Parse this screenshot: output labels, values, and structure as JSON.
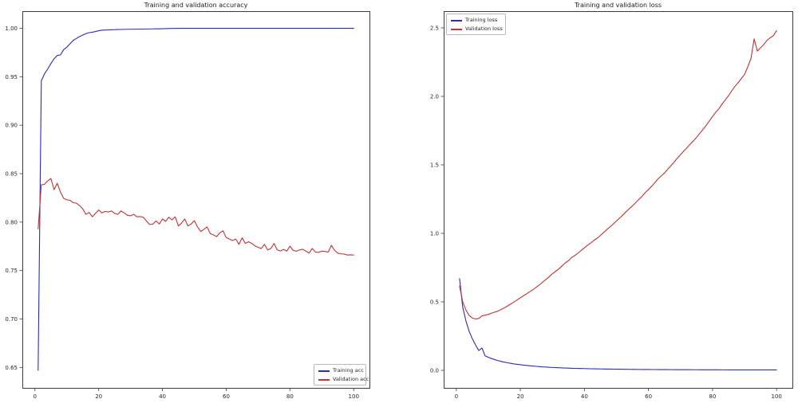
{
  "figure": {
    "background": "#ffffff",
    "axis_color": "#3c3c3c",
    "tick_text_color": "#262626"
  },
  "chart_data": [
    {
      "type": "line",
      "title": "Training and validation accuracy",
      "xlabel": "",
      "ylabel": "",
      "grid": false,
      "legend_position": "lower right",
      "xlim": [
        -3.95,
        104.95
      ],
      "ylim": [
        0.6289,
        1.0177
      ],
      "x_ticks": {
        "values": [
          0,
          20,
          40,
          60,
          80,
          100
        ],
        "labels": [
          "0",
          "20",
          "40",
          "60",
          "80",
          "100"
        ]
      },
      "y_ticks": {
        "values": [
          0.65,
          0.7,
          0.75,
          0.8,
          0.85,
          0.9,
          0.95,
          1.0
        ],
        "labels": [
          "0.65",
          "0.70",
          "0.75",
          "0.80",
          "0.85",
          "0.90",
          "0.95",
          "1.00"
        ]
      },
      "x": [
        1,
        2,
        3,
        4,
        5,
        6,
        7,
        8,
        9,
        10,
        11,
        12,
        13,
        14,
        15,
        16,
        17,
        18,
        19,
        20,
        21,
        22,
        23,
        24,
        25,
        26,
        27,
        28,
        29,
        30,
        31,
        32,
        33,
        34,
        35,
        36,
        37,
        38,
        39,
        40,
        41,
        42,
        43,
        44,
        45,
        46,
        47,
        48,
        49,
        50,
        51,
        52,
        53,
        54,
        55,
        56,
        57,
        58,
        59,
        60,
        61,
        62,
        63,
        64,
        65,
        66,
        67,
        68,
        69,
        70,
        71,
        72,
        73,
        74,
        75,
        76,
        77,
        78,
        79,
        80,
        81,
        82,
        83,
        84,
        85,
        86,
        87,
        88,
        89,
        90,
        91,
        92,
        93,
        94,
        95,
        96,
        97,
        98,
        99,
        100
      ],
      "series": [
        {
          "name": "Training acc",
          "color": "#2b2bbb",
          "y": [
            0.647,
            0.946,
            0.953,
            0.958,
            0.9635,
            0.9685,
            0.972,
            0.9725,
            0.978,
            0.9805,
            0.984,
            0.9875,
            0.9895,
            0.9915,
            0.993,
            0.9945,
            0.9955,
            0.996,
            0.9967,
            0.9975,
            0.998,
            0.9982,
            0.9983,
            0.9985,
            0.9986,
            0.9987,
            0.9988,
            0.9989,
            0.999,
            0.999,
            0.9991,
            0.9991,
            0.9992,
            0.9992,
            0.9993,
            0.9993,
            0.9994,
            0.9995,
            0.9995,
            0.9996,
            0.9997,
            0.9998,
            0.9999,
            0.9999,
            1.0,
            1.0,
            1.0,
            1.0,
            1.0,
            1.0,
            1.0,
            1.0,
            1.0,
            1.0,
            1.0,
            1.0,
            1.0,
            1.0,
            1.0,
            1.0,
            1.0,
            1.0,
            1.0,
            1.0,
            1.0,
            1.0,
            1.0,
            1.0,
            1.0,
            1.0,
            1.0,
            1.0,
            1.0,
            1.0,
            1.0,
            1.0,
            1.0,
            1.0,
            1.0,
            1.0,
            1.0,
            1.0,
            1.0,
            1.0,
            1.0,
            1.0,
            1.0,
            1.0,
            1.0,
            1.0,
            1.0,
            1.0,
            1.0,
            1.0,
            1.0,
            1.0,
            1.0,
            1.0,
            1.0,
            1.0
          ]
        },
        {
          "name": "Validation acc",
          "color": "#c03434",
          "y": [
            0.793,
            0.8385,
            0.839,
            0.8425,
            0.845,
            0.8335,
            0.84,
            0.831,
            0.8245,
            0.823,
            0.8225,
            0.82,
            0.8195,
            0.817,
            0.8135,
            0.808,
            0.81,
            0.8055,
            0.809,
            0.8125,
            0.8095,
            0.811,
            0.8105,
            0.8115,
            0.809,
            0.808,
            0.8115,
            0.8095,
            0.807,
            0.8065,
            0.808,
            0.8055,
            0.8057,
            0.805,
            0.801,
            0.7975,
            0.798,
            0.8012,
            0.798,
            0.8032,
            0.8008,
            0.805,
            0.8022,
            0.8055,
            0.796,
            0.799,
            0.8032,
            0.796,
            0.798,
            0.8015,
            0.795,
            0.7903,
            0.7925,
            0.795,
            0.788,
            0.7868,
            0.785,
            0.789,
            0.791,
            0.784,
            0.7825,
            0.781,
            0.7825,
            0.777,
            0.7838,
            0.778,
            0.7797,
            0.778,
            0.7755,
            0.774,
            0.7727,
            0.777,
            0.7713,
            0.7727,
            0.778,
            0.7713,
            0.7702,
            0.7718,
            0.77,
            0.7752,
            0.7708,
            0.77,
            0.7712,
            0.772,
            0.77,
            0.768,
            0.7728,
            0.769,
            0.7688,
            0.77,
            0.7697,
            0.769,
            0.776,
            0.7708,
            0.768,
            0.7672,
            0.767,
            0.766,
            0.7662,
            0.766
          ]
        }
      ]
    },
    {
      "type": "line",
      "title": "Training and validation loss",
      "xlabel": "",
      "ylabel": "",
      "grid": false,
      "legend_position": "upper left",
      "xlim": [
        -3.95,
        104.95
      ],
      "ylim": [
        -0.128,
        2.622
      ],
      "x_ticks": {
        "values": [
          0,
          20,
          40,
          60,
          80,
          100
        ],
        "labels": [
          "0",
          "20",
          "40",
          "60",
          "80",
          "100"
        ]
      },
      "y_ticks": {
        "values": [
          0.0,
          0.5,
          1.0,
          1.5,
          2.0,
          2.5
        ],
        "labels": [
          "0.0",
          "0.5",
          "1.0",
          "1.5",
          "2.0",
          "2.5"
        ]
      },
      "x": [
        1,
        2,
        3,
        4,
        5,
        6,
        7,
        8,
        9,
        10,
        11,
        12,
        13,
        14,
        15,
        16,
        17,
        18,
        19,
        20,
        21,
        22,
        23,
        24,
        25,
        26,
        27,
        28,
        29,
        30,
        31,
        32,
        33,
        34,
        35,
        36,
        37,
        38,
        39,
        40,
        41,
        42,
        43,
        44,
        45,
        46,
        47,
        48,
        49,
        50,
        51,
        52,
        53,
        54,
        55,
        56,
        57,
        58,
        59,
        60,
        61,
        62,
        63,
        64,
        65,
        66,
        67,
        68,
        69,
        70,
        71,
        72,
        73,
        74,
        75,
        76,
        77,
        78,
        79,
        80,
        81,
        82,
        83,
        84,
        85,
        86,
        87,
        88,
        89,
        90,
        91,
        92,
        93,
        94,
        95,
        96,
        97,
        98,
        99,
        100
      ],
      "series": [
        {
          "name": "Training loss",
          "color": "#2b2bbb",
          "y": [
            0.67,
            0.46,
            0.36,
            0.285,
            0.23,
            0.185,
            0.145,
            0.163,
            0.105,
            0.095,
            0.086,
            0.078,
            0.071,
            0.065,
            0.06,
            0.055,
            0.051,
            0.047,
            0.044,
            0.041,
            0.038,
            0.036,
            0.033,
            0.031,
            0.029,
            0.027,
            0.025,
            0.024,
            0.022,
            0.021,
            0.02,
            0.019,
            0.018,
            0.017,
            0.016,
            0.015,
            0.0145,
            0.014,
            0.0135,
            0.013,
            0.012,
            0.0115,
            0.011,
            0.0105,
            0.01,
            0.0096,
            0.0092,
            0.0089,
            0.0086,
            0.0083,
            0.008,
            0.0078,
            0.0075,
            0.0072,
            0.007,
            0.0067,
            0.0065,
            0.0063,
            0.0061,
            0.006,
            0.0058,
            0.0057,
            0.0055,
            0.0054,
            0.0052,
            0.0051,
            0.005,
            0.0049,
            0.0048,
            0.0047,
            0.0046,
            0.0045,
            0.0044,
            0.0043,
            0.0042,
            0.0041,
            0.004,
            0.0039,
            0.0038,
            0.0038,
            0.0037,
            0.0036,
            0.0035,
            0.0035,
            0.0034,
            0.0034,
            0.0033,
            0.0033,
            0.0032,
            0.0032,
            0.0031,
            0.0031,
            0.003,
            0.003,
            0.003,
            0.003,
            0.003,
            0.003,
            0.003,
            0.003
          ]
        },
        {
          "name": "Validation loss",
          "color": "#c03434",
          "y": [
            0.615,
            0.5,
            0.44,
            0.4,
            0.382,
            0.375,
            0.378,
            0.398,
            0.402,
            0.408,
            0.418,
            0.425,
            0.432,
            0.445,
            0.456,
            0.47,
            0.484,
            0.499,
            0.514,
            0.53,
            0.545,
            0.559,
            0.575,
            0.59,
            0.608,
            0.625,
            0.645,
            0.664,
            0.684,
            0.705,
            0.723,
            0.74,
            0.762,
            0.784,
            0.8,
            0.824,
            0.838,
            0.856,
            0.875,
            0.895,
            0.914,
            0.93,
            0.949,
            0.965,
            0.985,
            1.006,
            1.028,
            1.048,
            1.068,
            1.09,
            1.112,
            1.134,
            1.158,
            1.18,
            1.2,
            1.224,
            1.248,
            1.27,
            1.298,
            1.32,
            1.344,
            1.37,
            1.398,
            1.42,
            1.44,
            1.468,
            1.494,
            1.52,
            1.548,
            1.574,
            1.6,
            1.624,
            1.65,
            1.674,
            1.7,
            1.73,
            1.758,
            1.788,
            1.82,
            1.853,
            1.884,
            1.91,
            1.944,
            1.975,
            2.005,
            2.04,
            2.073,
            2.1,
            2.13,
            2.16,
            2.215,
            2.275,
            2.42,
            2.33,
            2.355,
            2.378,
            2.408,
            2.428,
            2.443,
            2.48
          ]
        }
      ]
    }
  ]
}
